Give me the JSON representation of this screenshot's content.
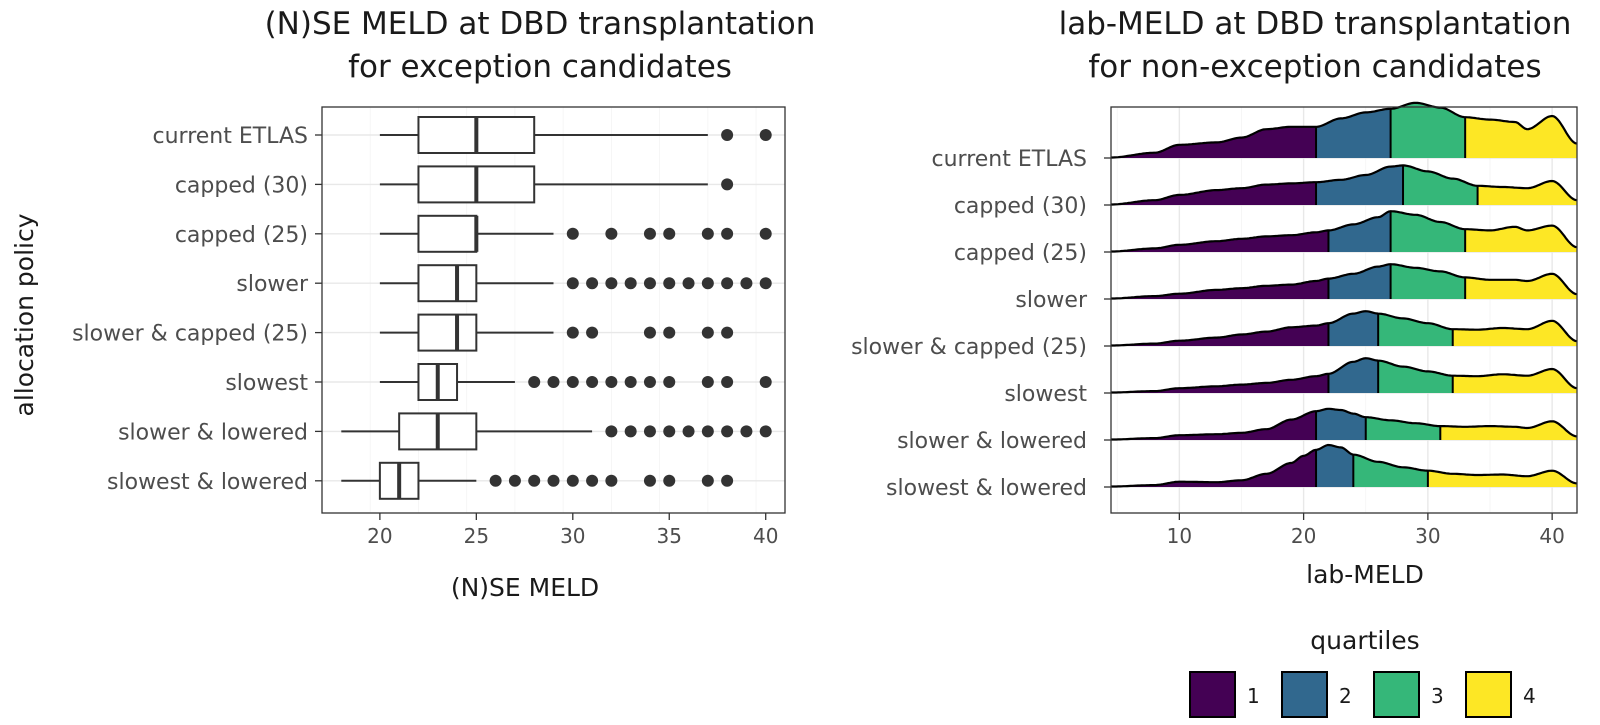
{
  "chart_data": [
    {
      "type": "boxplot",
      "title_lines": [
        "(N)SE MELD at DBD transplantation",
        "for exception candidates"
      ],
      "xlabel": "(N)SE MELD",
      "ylabel": "allocation policy",
      "xlim": [
        17,
        41
      ],
      "xticks": [
        20,
        25,
        30,
        35,
        40
      ],
      "grid": true,
      "categories": [
        "current ETLAS",
        "capped (30)",
        "capped (25)",
        "slower",
        "slower & capped (25)",
        "slowest",
        "slower & lowered",
        "slowest & lowered"
      ],
      "boxes": [
        {
          "whisker_low": 20,
          "q1": 22,
          "median": 25,
          "q3": 28,
          "whisker_high": 37,
          "outliers": [
            38,
            40
          ]
        },
        {
          "whisker_low": 20,
          "q1": 22,
          "median": 25,
          "q3": 28,
          "whisker_high": 37,
          "outliers": [
            38
          ]
        },
        {
          "whisker_low": 20,
          "q1": 22,
          "median": 25,
          "q3": 25,
          "whisker_high": 29,
          "outliers": [
            30,
            32,
            34,
            35,
            37,
            38,
            40
          ]
        },
        {
          "whisker_low": 20,
          "q1": 22,
          "median": 24,
          "q3": 25,
          "whisker_high": 29,
          "outliers": [
            30,
            31,
            32,
            33,
            34,
            35,
            36,
            37,
            38,
            39,
            40
          ]
        },
        {
          "whisker_low": 20,
          "q1": 22,
          "median": 24,
          "q3": 25,
          "whisker_high": 29,
          "outliers": [
            30,
            31,
            34,
            35,
            37,
            38
          ]
        },
        {
          "whisker_low": 20,
          "q1": 22,
          "median": 23,
          "q3": 24,
          "whisker_high": 27,
          "outliers": [
            28,
            29,
            30,
            31,
            32,
            33,
            34,
            35,
            37,
            38,
            40
          ]
        },
        {
          "whisker_low": 18,
          "q1": 21,
          "median": 23,
          "q3": 25,
          "whisker_high": 31,
          "outliers": [
            32,
            33,
            34,
            35,
            36,
            37,
            38,
            39,
            40
          ]
        },
        {
          "whisker_low": 18,
          "q1": 20,
          "median": 21,
          "q3": 22,
          "whisker_high": 25,
          "outliers": [
            26,
            27,
            28,
            29,
            30,
            31,
            32,
            34,
            35,
            37,
            38
          ]
        }
      ]
    },
    {
      "type": "ridgeline",
      "title_lines": [
        "lab-MELD at DBD transplantation",
        "for non-exception candidates"
      ],
      "xlabel": "lab-MELD",
      "xlim": [
        4.5,
        42
      ],
      "xticks": [
        10,
        20,
        30,
        40
      ],
      "grid": true,
      "categories": [
        "current ETLAS",
        "capped (30)",
        "capped (25)",
        "slower",
        "slower & capped (25)",
        "slowest",
        "slower & lowered",
        "slowest & lowered"
      ],
      "legend": {
        "title": "quartiles",
        "position": "bottom",
        "labels": [
          "1",
          "2",
          "3",
          "4"
        ]
      },
      "quartile_colors": [
        "#440154",
        "#31688e",
        "#35b779",
        "#fde725"
      ],
      "series": [
        {
          "name": "current ETLAS",
          "q_breaks": [
            21,
            27,
            33
          ],
          "density_x": [
            4.5,
            8,
            10,
            13,
            15,
            17,
            19,
            21,
            23,
            25,
            27,
            29,
            31,
            33,
            35,
            37,
            38,
            40,
            42
          ],
          "density_y": [
            0.02,
            0.22,
            0.55,
            0.65,
            0.85,
            1.2,
            1.3,
            1.3,
            1.65,
            1.9,
            2.05,
            2.3,
            2.1,
            1.7,
            1.6,
            1.5,
            1.2,
            1.75,
            0.6
          ]
        },
        {
          "name": "capped (30)",
          "q_breaks": [
            21,
            28,
            34
          ],
          "density_x": [
            4.5,
            8,
            10,
            13,
            15,
            17,
            19,
            21,
            23,
            25,
            27,
            28,
            30,
            32,
            34,
            36,
            38,
            40,
            42
          ],
          "density_y": [
            0.02,
            0.2,
            0.42,
            0.62,
            0.7,
            0.85,
            0.9,
            0.95,
            1.05,
            1.25,
            1.6,
            1.65,
            1.4,
            1.1,
            0.8,
            0.75,
            0.7,
            1.0,
            0.2
          ]
        },
        {
          "name": "capped (25)",
          "q_breaks": [
            22,
            27,
            33
          ],
          "density_x": [
            4.5,
            8,
            10,
            13,
            15,
            17,
            19,
            21,
            22,
            24,
            26,
            27,
            29,
            31,
            33,
            35,
            37,
            38,
            40,
            42
          ],
          "density_y": [
            0.02,
            0.15,
            0.3,
            0.45,
            0.55,
            0.65,
            0.7,
            0.82,
            0.9,
            1.15,
            1.45,
            1.7,
            1.55,
            1.25,
            0.95,
            0.9,
            1.05,
            0.9,
            1.1,
            0.2
          ]
        },
        {
          "name": "slower",
          "q_breaks": [
            22,
            27,
            33
          ],
          "density_x": [
            4.5,
            8,
            10,
            13,
            15,
            17,
            19,
            21,
            22,
            24,
            26,
            27,
            29,
            31,
            33,
            35,
            37,
            38,
            40,
            42
          ],
          "density_y": [
            0.02,
            0.12,
            0.22,
            0.38,
            0.45,
            0.55,
            0.6,
            0.75,
            0.85,
            1.05,
            1.35,
            1.45,
            1.3,
            1.15,
            0.9,
            0.8,
            0.8,
            0.75,
            1.05,
            0.2
          ]
        },
        {
          "name": "slower & capped (25)",
          "q_breaks": [
            22,
            26,
            32
          ],
          "density_x": [
            4.5,
            8,
            10,
            13,
            15,
            17,
            19,
            21,
            22,
            24,
            25,
            26,
            28,
            30,
            32,
            34,
            36,
            38,
            40,
            42
          ],
          "density_y": [
            0.02,
            0.1,
            0.22,
            0.35,
            0.48,
            0.6,
            0.78,
            0.85,
            0.95,
            1.35,
            1.45,
            1.35,
            1.15,
            0.95,
            0.7,
            0.68,
            0.75,
            0.7,
            1.05,
            0.2
          ]
        },
        {
          "name": "slowest",
          "q_breaks": [
            22,
            26,
            32
          ],
          "density_x": [
            4.5,
            8,
            10,
            13,
            15,
            17,
            19,
            21,
            22,
            24,
            25,
            26,
            28,
            30,
            32,
            34,
            36,
            38,
            40,
            42
          ],
          "density_y": [
            0.02,
            0.08,
            0.2,
            0.28,
            0.35,
            0.42,
            0.55,
            0.7,
            0.8,
            1.3,
            1.45,
            1.35,
            1.1,
            0.9,
            0.72,
            0.7,
            0.78,
            0.72,
            1.0,
            0.2
          ]
        },
        {
          "name": "slower & lowered",
          "q_breaks": [
            21,
            25,
            31
          ],
          "density_x": [
            4.5,
            8,
            10,
            13,
            15,
            17,
            19,
            21,
            22,
            23,
            24,
            25,
            27,
            29,
            31,
            33,
            35,
            37,
            38,
            40,
            42
          ],
          "density_y": [
            0.02,
            0.08,
            0.2,
            0.24,
            0.3,
            0.45,
            0.85,
            1.2,
            1.3,
            1.25,
            1.1,
            0.95,
            0.82,
            0.7,
            0.58,
            0.55,
            0.58,
            0.55,
            0.5,
            0.78,
            0.15
          ]
        },
        {
          "name": "slowest & lowered",
          "q_breaks": [
            21,
            24,
            30
          ],
          "density_x": [
            4.5,
            8,
            10,
            13,
            15,
            17,
            19,
            20,
            21,
            22,
            23,
            24,
            26,
            28,
            30,
            32,
            34,
            36,
            38,
            40,
            42
          ],
          "density_y": [
            0.02,
            0.08,
            0.22,
            0.2,
            0.28,
            0.55,
            1.0,
            1.3,
            1.55,
            1.75,
            1.65,
            1.35,
            1.05,
            0.82,
            0.68,
            0.55,
            0.5,
            0.52,
            0.45,
            0.68,
            0.15
          ]
        }
      ]
    }
  ]
}
